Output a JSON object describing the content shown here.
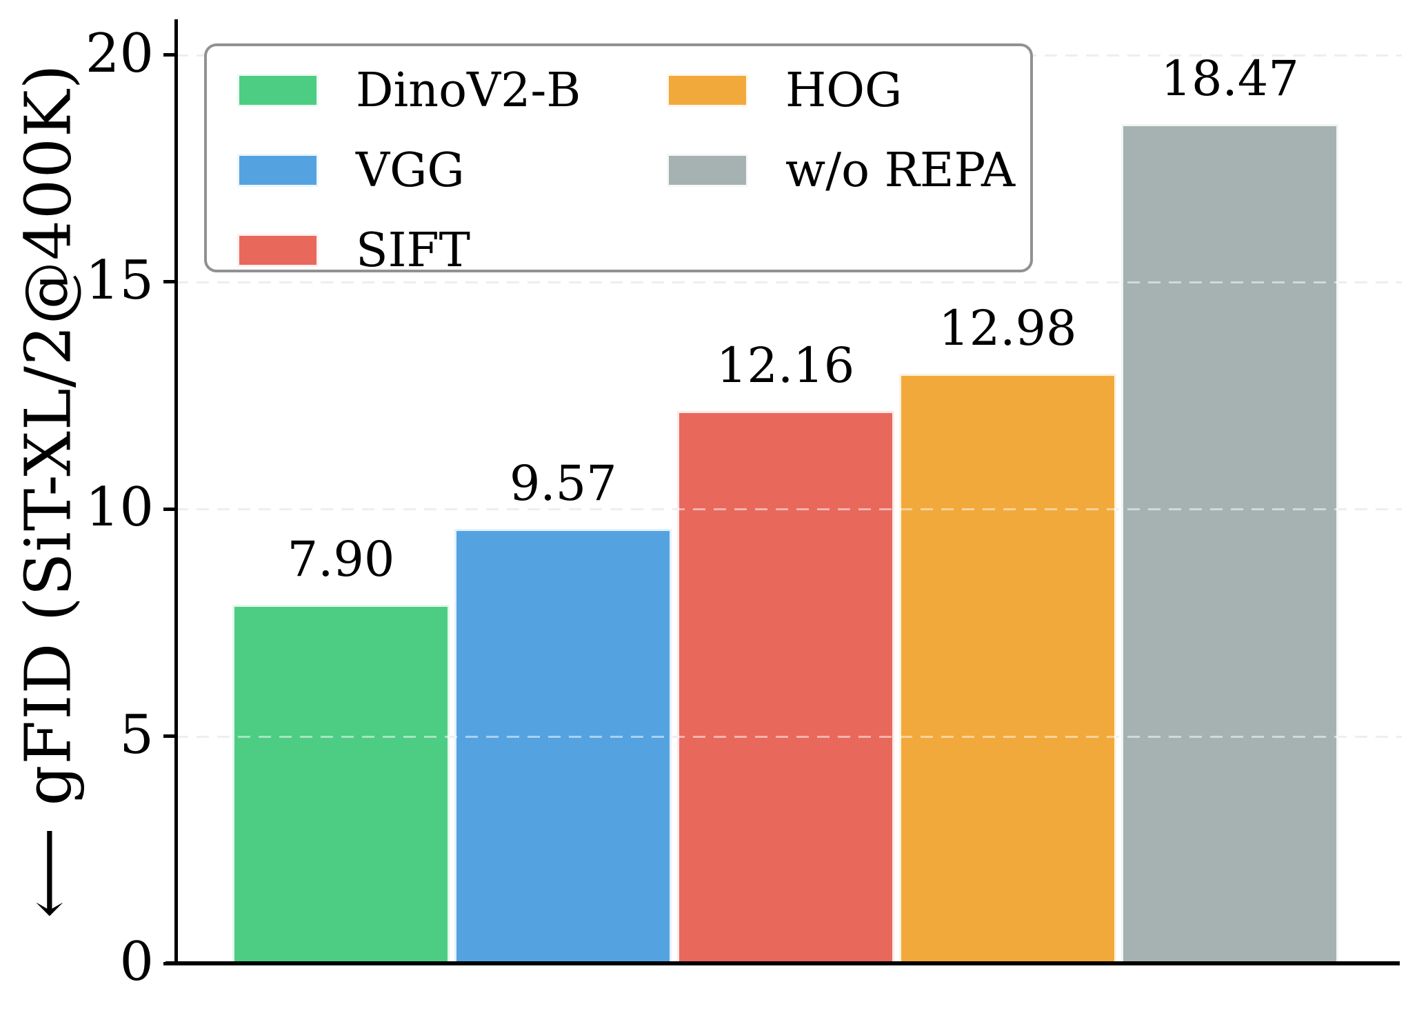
{
  "figure": {
    "ylabel": "⟵ gFID (SiT-XL/2@400K)"
  },
  "chart_data": {
    "type": "bar",
    "categories": [
      "DinoV2-B",
      "VGG",
      "SIFT",
      "HOG",
      "w/o REPA"
    ],
    "values": [
      7.9,
      9.57,
      12.16,
      12.98,
      18.47
    ],
    "bar_labels": [
      "7.90",
      "9.57",
      "12.16",
      "12.98",
      "18.47"
    ],
    "colors": [
      "#4ccd83",
      "#54a3e0",
      "#e8685c",
      "#f2a93b",
      "#a6b2b2"
    ],
    "title": "",
    "xlabel": "",
    "ylabel": "⟵ gFID (SiT-XL/2@400K)",
    "ylim": [
      0,
      20.8
    ],
    "yticks": [
      0,
      5,
      10,
      15,
      20
    ],
    "grid": {
      "axis": "y",
      "style": "dashed",
      "color": "#dcdcdc"
    },
    "legend": {
      "position": "upper left",
      "ncol": 2,
      "entries": [
        {
          "label": "DinoV2-B",
          "color": "#4ccd83"
        },
        {
          "label": "VGG",
          "color": "#54a3e0"
        },
        {
          "label": "SIFT",
          "color": "#e8685c"
        },
        {
          "label": "HOG",
          "color": "#f2a93b"
        },
        {
          "label": "w/o REPA",
          "color": "#a6b2b2"
        }
      ]
    }
  }
}
